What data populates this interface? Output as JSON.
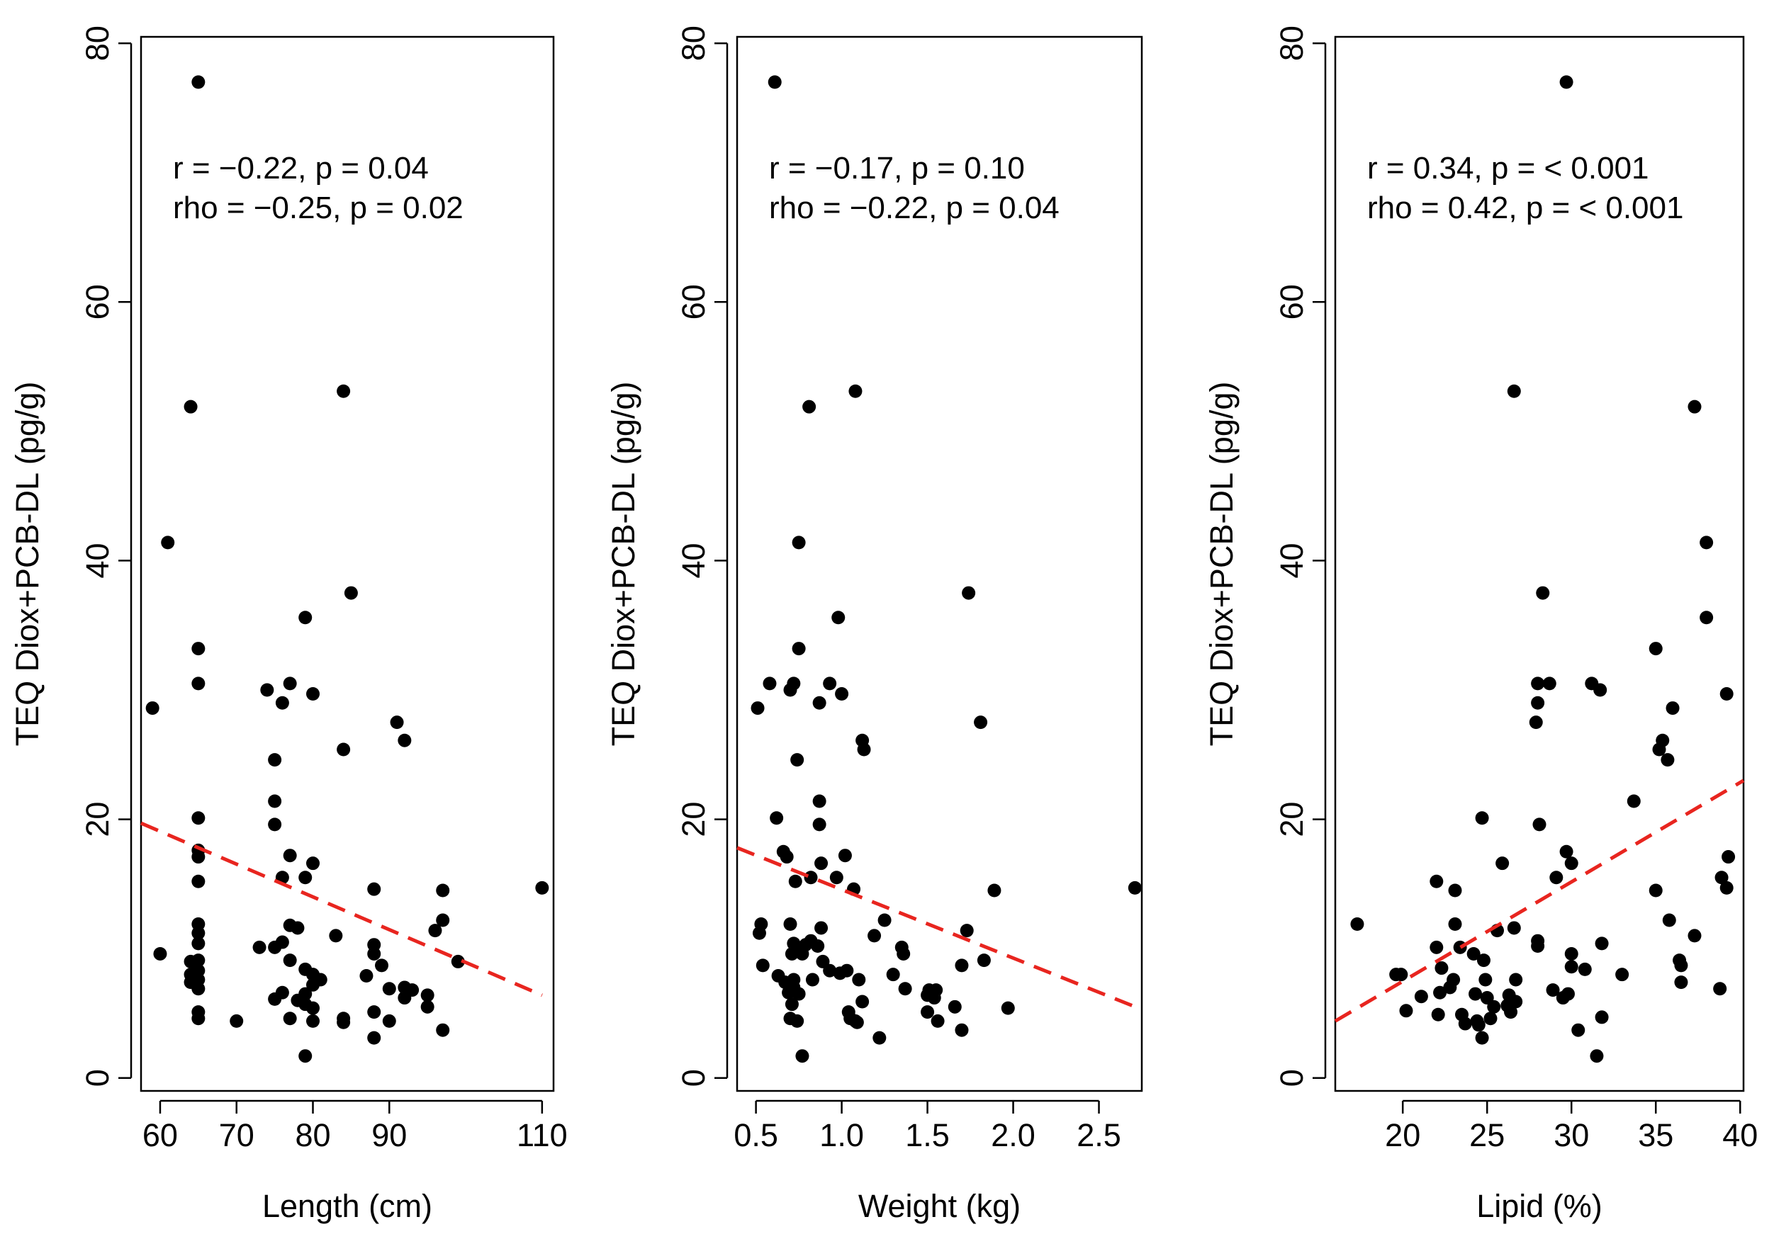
{
  "style": {
    "point_color": "#000000",
    "fit_line_color": "#e8251f",
    "frame_color": "#000000"
  },
  "chart_data": [
    {
      "type": "scatter",
      "xlabel": "Length (cm)",
      "ylabel": "TEQ Diox+PCB-DL (pg/g)",
      "xlim": [
        57.5,
        111.5
      ],
      "ylim": [
        -1,
        80.5
      ],
      "x_ticks": [
        60,
        70,
        80,
        90,
        110
      ],
      "x_tick_labels": [
        "60",
        "70",
        "80",
        "90",
        "110"
      ],
      "y_ticks": [
        0,
        20,
        40,
        60,
        80
      ],
      "y_tick_labels": [
        "0",
        "20",
        "40",
        "60",
        "80"
      ],
      "annotations": [
        "r = −0.22, p = 0.04",
        "rho = −0.25, p = 0.02"
      ],
      "fit_line": {
        "style": "dashed",
        "x": [
          57.5,
          110
        ],
        "y": [
          19.7,
          6.4
        ]
      },
      "points": [
        [
          65,
          77.0
        ],
        [
          64,
          51.9
        ],
        [
          84,
          53.1
        ],
        [
          61,
          41.4
        ],
        [
          85,
          37.5
        ],
        [
          79,
          35.6
        ],
        [
          65,
          33.2
        ],
        [
          65,
          30.5
        ],
        [
          59,
          28.6
        ],
        [
          74,
          30.0
        ],
        [
          77,
          30.5
        ],
        [
          80,
          29.7
        ],
        [
          76,
          29.0
        ],
        [
          91,
          27.5
        ],
        [
          92,
          26.1
        ],
        [
          84,
          25.4
        ],
        [
          75,
          24.6
        ],
        [
          75,
          21.4
        ],
        [
          65,
          20.1
        ],
        [
          75,
          19.6
        ],
        [
          65,
          17.6
        ],
        [
          65,
          17.1
        ],
        [
          77,
          17.2
        ],
        [
          80,
          16.6
        ],
        [
          65,
          15.2
        ],
        [
          76,
          15.5
        ],
        [
          79,
          15.5
        ],
        [
          110,
          14.7
        ],
        [
          88,
          14.6
        ],
        [
          97,
          14.5
        ],
        [
          97,
          12.2
        ],
        [
          65,
          11.9
        ],
        [
          77,
          11.8
        ],
        [
          78,
          11.6
        ],
        [
          96,
          11.4
        ],
        [
          65,
          11.2
        ],
        [
          83,
          11.0
        ],
        [
          65,
          10.4
        ],
        [
          76,
          10.5
        ],
        [
          75,
          10.1
        ],
        [
          88,
          10.3
        ],
        [
          73,
          10.1
        ],
        [
          60,
          9.6
        ],
        [
          88,
          9.6
        ],
        [
          65,
          9.1
        ],
        [
          64,
          9.0
        ],
        [
          77,
          9.1
        ],
        [
          99,
          9.0
        ],
        [
          65,
          8.3
        ],
        [
          64,
          8.0
        ],
        [
          79,
          8.4
        ],
        [
          80,
          8.0
        ],
        [
          89,
          8.7
        ],
        [
          81,
          7.6
        ],
        [
          65,
          7.6
        ],
        [
          87,
          7.9
        ],
        [
          64,
          7.4
        ],
        [
          80,
          7.2
        ],
        [
          65,
          6.9
        ],
        [
          90,
          6.9
        ],
        [
          92,
          7.0
        ],
        [
          93,
          6.8
        ],
        [
          76,
          6.6
        ],
        [
          79,
          6.5
        ],
        [
          95,
          6.4
        ],
        [
          75,
          6.1
        ],
        [
          78,
          6.0
        ],
        [
          92,
          6.2
        ],
        [
          79,
          5.7
        ],
        [
          80,
          5.4
        ],
        [
          95,
          5.5
        ],
        [
          88,
          5.1
        ],
        [
          65,
          5.1
        ],
        [
          65,
          4.6
        ],
        [
          70,
          4.4
        ],
        [
          77,
          4.6
        ],
        [
          80,
          4.4
        ],
        [
          84,
          4.6
        ],
        [
          84,
          4.3
        ],
        [
          90,
          4.4
        ],
        [
          97,
          3.7
        ],
        [
          88,
          3.1
        ],
        [
          79,
          1.7
        ]
      ]
    },
    {
      "type": "scatter",
      "xlabel": "Weight (kg)",
      "ylabel": "TEQ Diox+PCB-DL (pg/g)",
      "xlim": [
        0.39,
        2.75
      ],
      "ylim": [
        -1,
        80.5
      ],
      "x_ticks": [
        0.5,
        1.0,
        1.5,
        2.0,
        2.5
      ],
      "x_tick_labels": [
        "0.5",
        "1.0",
        "1.5",
        "2.0",
        "2.5"
      ],
      "y_ticks": [
        0,
        20,
        40,
        60,
        80
      ],
      "y_tick_labels": [
        "0",
        "20",
        "40",
        "60",
        "80"
      ],
      "annotations": [
        "r = −0.17, p = 0.10",
        "rho = −0.22, p = 0.04"
      ],
      "fit_line": {
        "style": "dashed",
        "x": [
          0.39,
          2.75
        ],
        "y": [
          17.8,
          5.3
        ]
      },
      "points": [
        [
          0.61,
          77.0
        ],
        [
          0.81,
          51.9
        ],
        [
          1.08,
          53.1
        ],
        [
          0.75,
          41.4
        ],
        [
          1.74,
          37.5
        ],
        [
          0.98,
          35.6
        ],
        [
          0.75,
          33.2
        ],
        [
          0.58,
          30.5
        ],
        [
          0.72,
          30.5
        ],
        [
          0.7,
          30.0
        ],
        [
          0.93,
          30.5
        ],
        [
          1.0,
          29.7
        ],
        [
          0.87,
          29.0
        ],
        [
          0.51,
          28.6
        ],
        [
          1.81,
          27.5
        ],
        [
          1.12,
          26.1
        ],
        [
          1.13,
          25.4
        ],
        [
          0.74,
          24.6
        ],
        [
          0.87,
          21.4
        ],
        [
          0.62,
          20.1
        ],
        [
          0.87,
          19.6
        ],
        [
          0.66,
          17.5
        ],
        [
          0.68,
          17.1
        ],
        [
          1.02,
          17.2
        ],
        [
          0.88,
          16.6
        ],
        [
          0.82,
          15.5
        ],
        [
          0.97,
          15.5
        ],
        [
          0.73,
          15.2
        ],
        [
          2.71,
          14.7
        ],
        [
          1.89,
          14.5
        ],
        [
          1.07,
          14.6
        ],
        [
          1.25,
          12.2
        ],
        [
          0.53,
          11.9
        ],
        [
          0.7,
          11.9
        ],
        [
          0.88,
          11.6
        ],
        [
          1.73,
          11.4
        ],
        [
          0.52,
          11.2
        ],
        [
          1.19,
          11.0
        ],
        [
          0.82,
          10.6
        ],
        [
          0.72,
          10.4
        ],
        [
          0.79,
          10.3
        ],
        [
          0.74,
          10.1
        ],
        [
          0.86,
          10.2
        ],
        [
          1.35,
          10.1
        ],
        [
          0.71,
          9.6
        ],
        [
          0.77,
          9.6
        ],
        [
          1.36,
          9.6
        ],
        [
          1.83,
          9.1
        ],
        [
          0.89,
          9.0
        ],
        [
          0.54,
          8.7
        ],
        [
          0.93,
          8.3
        ],
        [
          1.03,
          8.3
        ],
        [
          0.99,
          8.1
        ],
        [
          1.7,
          8.7
        ],
        [
          0.63,
          7.9
        ],
        [
          1.3,
          8.0
        ],
        [
          0.83,
          7.6
        ],
        [
          0.67,
          7.4
        ],
        [
          0.72,
          7.6
        ],
        [
          1.1,
          7.6
        ],
        [
          0.72,
          7.0
        ],
        [
          1.51,
          6.8
        ],
        [
          1.55,
          6.8
        ],
        [
          0.69,
          6.6
        ],
        [
          1.5,
          6.4
        ],
        [
          1.37,
          6.9
        ],
        [
          0.75,
          6.5
        ],
        [
          1.54,
          6.2
        ],
        [
          1.12,
          5.9
        ],
        [
          0.71,
          5.7
        ],
        [
          1.66,
          5.5
        ],
        [
          1.97,
          5.4
        ],
        [
          1.04,
          5.1
        ],
        [
          1.5,
          5.1
        ],
        [
          0.7,
          4.6
        ],
        [
          1.05,
          4.6
        ],
        [
          1.08,
          4.4
        ],
        [
          0.74,
          4.4
        ],
        [
          1.56,
          4.4
        ],
        [
          1.09,
          4.3
        ],
        [
          1.7,
          3.7
        ],
        [
          1.22,
          3.1
        ],
        [
          0.77,
          1.7
        ]
      ]
    },
    {
      "type": "scatter",
      "xlabel": "Lipid (%)",
      "ylabel": "TEQ Diox+PCB-DL (pg/g)",
      "xlim": [
        16.0,
        40.2
      ],
      "ylim": [
        -1,
        80.5
      ],
      "x_ticks": [
        20,
        25,
        30,
        35,
        40
      ],
      "x_tick_labels": [
        "20",
        "25",
        "30",
        "35",
        "40"
      ],
      "y_ticks": [
        0,
        20,
        40,
        60,
        80
      ],
      "y_tick_labels": [
        "0",
        "20",
        "40",
        "60",
        "80"
      ],
      "annotations": [
        "r = 0.34, p = < 0.001",
        "rho = 0.42, p = < 0.001"
      ],
      "fit_line": {
        "style": "dashed",
        "x": [
          16.0,
          40.2
        ],
        "y": [
          4.4,
          23.0
        ]
      },
      "points": [
        [
          29.7,
          77.0
        ],
        [
          37.3,
          51.9
        ],
        [
          26.6,
          53.1
        ],
        [
          38.0,
          41.4
        ],
        [
          28.3,
          37.5
        ],
        [
          38.0,
          35.6
        ],
        [
          35.0,
          33.2
        ],
        [
          28.0,
          30.5
        ],
        [
          28.7,
          30.5
        ],
        [
          31.2,
          30.5
        ],
        [
          31.7,
          30.0
        ],
        [
          39.2,
          29.7
        ],
        [
          28.0,
          29.0
        ],
        [
          36.0,
          28.6
        ],
        [
          27.9,
          27.5
        ],
        [
          35.4,
          26.1
        ],
        [
          35.2,
          25.4
        ],
        [
          35.7,
          24.6
        ],
        [
          33.7,
          21.4
        ],
        [
          24.7,
          20.1
        ],
        [
          28.1,
          19.6
        ],
        [
          29.7,
          17.5
        ],
        [
          39.3,
          17.1
        ],
        [
          25.9,
          16.6
        ],
        [
          30.0,
          16.6
        ],
        [
          29.1,
          15.5
        ],
        [
          38.9,
          15.5
        ],
        [
          22.0,
          15.2
        ],
        [
          39.2,
          14.7
        ],
        [
          35.0,
          14.5
        ],
        [
          23.1,
          14.5
        ],
        [
          35.8,
          12.2
        ],
        [
          17.3,
          11.9
        ],
        [
          23.1,
          11.9
        ],
        [
          26.6,
          11.6
        ],
        [
          25.6,
          11.4
        ],
        [
          37.3,
          11.0
        ],
        [
          28.0,
          10.6
        ],
        [
          31.8,
          10.4
        ],
        [
          28.0,
          10.2
        ],
        [
          23.4,
          10.1
        ],
        [
          22.0,
          10.1
        ],
        [
          24.2,
          9.6
        ],
        [
          30.0,
          9.6
        ],
        [
          24.8,
          9.1
        ],
        [
          36.4,
          9.1
        ],
        [
          30.0,
          8.6
        ],
        [
          36.5,
          8.7
        ],
        [
          22.3,
          8.5
        ],
        [
          30.8,
          8.4
        ],
        [
          19.6,
          8.0
        ],
        [
          19.9,
          8.0
        ],
        [
          33.0,
          8.0
        ],
        [
          23.0,
          7.6
        ],
        [
          24.9,
          7.6
        ],
        [
          26.7,
          7.6
        ],
        [
          36.5,
          7.4
        ],
        [
          22.8,
          7.0
        ],
        [
          38.8,
          6.9
        ],
        [
          28.9,
          6.8
        ],
        [
          22.2,
          6.6
        ],
        [
          24.3,
          6.5
        ],
        [
          29.8,
          6.5
        ],
        [
          26.3,
          6.4
        ],
        [
          21.1,
          6.3
        ],
        [
          25.0,
          6.2
        ],
        [
          26.7,
          5.9
        ],
        [
          29.5,
          6.2
        ],
        [
          26.2,
          5.6
        ],
        [
          25.4,
          5.5
        ],
        [
          20.2,
          5.2
        ],
        [
          26.4,
          5.1
        ],
        [
          22.1,
          4.9
        ],
        [
          23.5,
          4.9
        ],
        [
          31.8,
          4.7
        ],
        [
          25.2,
          4.6
        ],
        [
          24.4,
          4.4
        ],
        [
          23.7,
          4.2
        ],
        [
          24.5,
          4.1
        ],
        [
          30.4,
          3.7
        ],
        [
          24.7,
          3.1
        ],
        [
          31.5,
          1.7
        ]
      ]
    }
  ]
}
